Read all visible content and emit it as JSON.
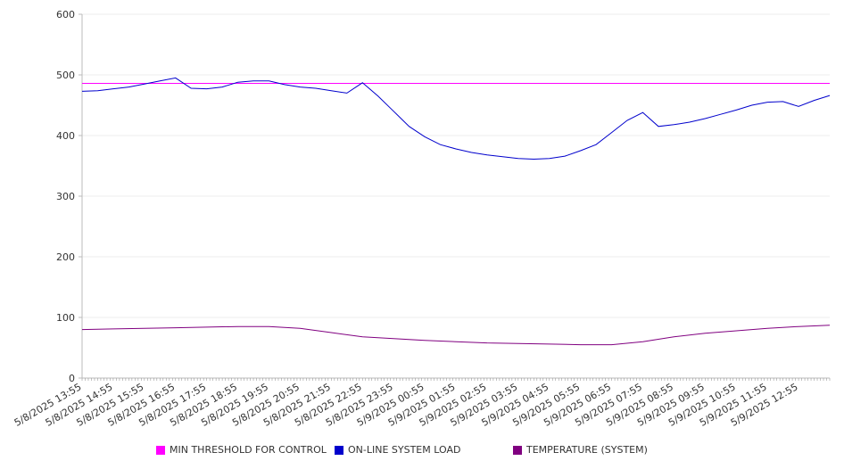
{
  "chart_data": {
    "type": "line",
    "title": "",
    "xlabel": "",
    "ylabel": "",
    "ylim": [
      0,
      600
    ],
    "y_ticks": [
      "0",
      "100",
      "200",
      "300",
      "400",
      "500",
      "600"
    ],
    "x_ticks": [
      "5/8/2025 13:55",
      "5/8/2025 14:55",
      "5/8/2025 15:55",
      "5/8/2025 16:55",
      "5/8/2025 17:55",
      "5/8/2025 18:55",
      "5/8/2025 19:55",
      "5/8/2025 20:55",
      "5/8/2025 21:55",
      "5/8/2025 22:55",
      "5/8/2025 23:55",
      "5/9/2025 00:55",
      "5/9/2025 01:55",
      "5/9/2025 02:55",
      "5/9/2025 03:55",
      "5/9/2025 04:55",
      "5/9/2025 05:55",
      "5/9/2025 06:55",
      "5/9/2025 07:55",
      "5/9/2025 08:55",
      "5/9/2025 09:55",
      "5/9/2025 10:55",
      "5/9/2025 11:55",
      "5/9/2025 12:55"
    ],
    "grid": true,
    "legend_position": "bottom",
    "series": [
      {
        "name": "MIN THRESHOLD FOR CONTROL",
        "color": "#ff00ff",
        "x": [
          "5/8/2025 13:55",
          "5/9/2025 13:55"
        ],
        "values": [
          486,
          486
        ]
      },
      {
        "name": "ON-LINE SYSTEM LOAD",
        "color": "#0000cc",
        "x": [
          "5/8/2025 13:55",
          "5/8/2025 14:25",
          "5/8/2025 14:55",
          "5/8/2025 15:25",
          "5/8/2025 15:55",
          "5/8/2025 16:25",
          "5/8/2025 16:55",
          "5/8/2025 17:25",
          "5/8/2025 17:55",
          "5/8/2025 18:25",
          "5/8/2025 18:55",
          "5/8/2025 19:25",
          "5/8/2025 19:55",
          "5/8/2025 20:25",
          "5/8/2025 20:55",
          "5/8/2025 21:25",
          "5/8/2025 21:55",
          "5/8/2025 22:25",
          "5/8/2025 22:55",
          "5/8/2025 23:25",
          "5/8/2025 23:55",
          "5/9/2025 00:25",
          "5/9/2025 00:55",
          "5/9/2025 01:25",
          "5/9/2025 01:55",
          "5/9/2025 02:25",
          "5/9/2025 02:55",
          "5/9/2025 03:25",
          "5/9/2025 03:55",
          "5/9/2025 04:25",
          "5/9/2025 04:55",
          "5/9/2025 05:25",
          "5/9/2025 05:55",
          "5/9/2025 06:25",
          "5/9/2025 06:55",
          "5/9/2025 07:25",
          "5/9/2025 07:55",
          "5/9/2025 08:25",
          "5/9/2025 08:55",
          "5/9/2025 09:25",
          "5/9/2025 09:55",
          "5/9/2025 10:25",
          "5/9/2025 10:55",
          "5/9/2025 11:25",
          "5/9/2025 11:55",
          "5/9/2025 12:25",
          "5/9/2025 12:55",
          "5/9/2025 13:25",
          "5/9/2025 13:55"
        ],
        "values": [
          473,
          474,
          477,
          480,
          485,
          490,
          495,
          478,
          477,
          480,
          488,
          490,
          490,
          484,
          480,
          478,
          474,
          470,
          487,
          465,
          440,
          415,
          398,
          385,
          378,
          372,
          368,
          365,
          362,
          361,
          362,
          366,
          375,
          385,
          405,
          425,
          438,
          415,
          418,
          422,
          428,
          435,
          442,
          450,
          455,
          456,
          448,
          458,
          466
        ]
      },
      {
        "name": "TEMPERATURE (SYSTEM)",
        "color": "#800080",
        "x": [
          "5/8/2025 13:55",
          "5/8/2025 14:55",
          "5/8/2025 15:55",
          "5/8/2025 16:55",
          "5/8/2025 17:55",
          "5/8/2025 18:55",
          "5/8/2025 19:55",
          "5/8/2025 20:55",
          "5/8/2025 21:55",
          "5/8/2025 22:55",
          "5/8/2025 23:55",
          "5/9/2025 00:55",
          "5/9/2025 01:55",
          "5/9/2025 02:55",
          "5/9/2025 03:55",
          "5/9/2025 04:55",
          "5/9/2025 05:55",
          "5/9/2025 06:55",
          "5/9/2025 07:55",
          "5/9/2025 08:55",
          "5/9/2025 09:55",
          "5/9/2025 10:55",
          "5/9/2025 11:55",
          "5/9/2025 12:55",
          "5/9/2025 13:55"
        ],
        "values": [
          80,
          81,
          82,
          83,
          84,
          85,
          85,
          82,
          75,
          68,
          65,
          62,
          60,
          58,
          57,
          56,
          55,
          55,
          60,
          68,
          74,
          78,
          82,
          85,
          87
        ]
      }
    ]
  }
}
